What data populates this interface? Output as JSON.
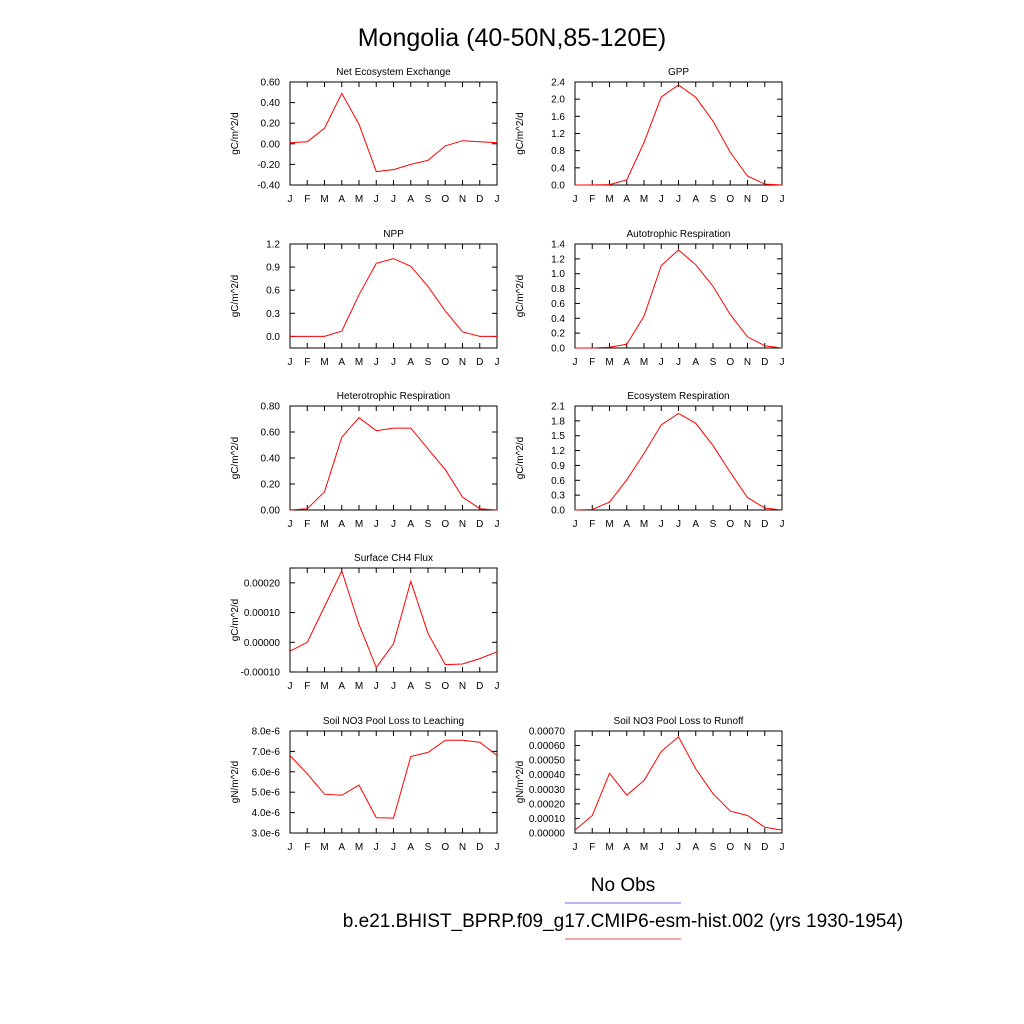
{
  "figure": {
    "title": "Mongolia (40-50N,85-120E)",
    "months": [
      "J",
      "F",
      "M",
      "A",
      "M",
      "J",
      "J",
      "A",
      "S",
      "O",
      "N",
      "D",
      "J"
    ]
  },
  "legend": {
    "items": [
      {
        "label": "No Obs",
        "color": "#8a8aee"
      },
      {
        "label": "b.e21.BHIST_BPRP.f09_g17.CMIP6-esm-hist.002 (yrs 1930-1954)",
        "color": "#f07070"
      }
    ]
  },
  "chart_data": [
    {
      "type": "line",
      "title": "Net Ecosystem Exchange",
      "ylabel": "gC/m^2/d",
      "ylim": [
        -0.4,
        0.6
      ],
      "yticks": [
        "0.60",
        "0.40",
        "0.20",
        "0.00",
        "-0.20",
        "-0.40"
      ],
      "ytick_values": [
        0.6,
        0.4,
        0.2,
        0.0,
        -0.2,
        -0.4
      ],
      "color": "#ff0000",
      "values": [
        0.01,
        0.02,
        0.15,
        0.49,
        0.19,
        -0.27,
        -0.25,
        -0.2,
        -0.16,
        -0.02,
        0.03,
        0.02,
        0.01
      ]
    },
    {
      "type": "line",
      "title": "GPP",
      "ylabel": "gC/m^2/d",
      "ylim": [
        0.0,
        2.4
      ],
      "yticks": [
        "2.4",
        "2.0",
        "1.6",
        "1.2",
        "0.8",
        "0.4",
        "0.0"
      ],
      "ytick_values": [
        2.4,
        2.0,
        1.6,
        1.2,
        0.8,
        0.4,
        0.0
      ],
      "color": "#ff0000",
      "values": [
        0.0,
        0.0,
        0.01,
        0.12,
        0.99,
        2.05,
        2.33,
        2.04,
        1.49,
        0.76,
        0.21,
        0.02,
        0.0
      ]
    },
    {
      "type": "line",
      "title": "NPP",
      "ylabel": "gC/m^2/d",
      "ylim": [
        -0.15,
        1.2
      ],
      "yticks": [
        "1.2",
        "0.9",
        "0.6",
        "0.3",
        "0.0"
      ],
      "ytick_values": [
        1.2,
        0.9,
        0.6,
        0.3,
        0.0
      ],
      "color": "#ff0000",
      "values": [
        0.0,
        0.0,
        0.0,
        0.07,
        0.54,
        0.95,
        1.01,
        0.91,
        0.65,
        0.33,
        0.06,
        0.0,
        0.0
      ]
    },
    {
      "type": "line",
      "title": "Autotrophic Respiration",
      "ylabel": "gC/m^2/d",
      "ylim": [
        0.0,
        1.4
      ],
      "yticks": [
        "1.4",
        "1.2",
        "1.0",
        "0.8",
        "0.6",
        "0.4",
        "0.2",
        "0.0"
      ],
      "ytick_values": [
        1.4,
        1.2,
        1.0,
        0.8,
        0.6,
        0.4,
        0.2,
        0.0
      ],
      "color": "#ff0000",
      "values": [
        0.0,
        0.0,
        0.01,
        0.05,
        0.43,
        1.11,
        1.32,
        1.12,
        0.83,
        0.45,
        0.15,
        0.03,
        0.0
      ]
    },
    {
      "type": "line",
      "title": "Heterotrophic Respiration",
      "ylabel": "gC/m^2/d",
      "ylim": [
        0.0,
        0.8
      ],
      "yticks": [
        "0.80",
        "0.60",
        "0.40",
        "0.20",
        "0.00"
      ],
      "ytick_values": [
        0.8,
        0.6,
        0.4,
        0.2,
        0.0
      ],
      "color": "#ff0000",
      "values": [
        0.0,
        0.01,
        0.14,
        0.56,
        0.71,
        0.61,
        0.63,
        0.63,
        0.47,
        0.31,
        0.1,
        0.01,
        0.0
      ]
    },
    {
      "type": "line",
      "title": "Ecosystem Respiration",
      "ylabel": "gC/m^2/d",
      "ylim": [
        0.0,
        2.1
      ],
      "yticks": [
        "2.1",
        "1.8",
        "1.5",
        "1.2",
        "0.9",
        "0.6",
        "0.3",
        "0.0"
      ],
      "ytick_values": [
        2.1,
        1.8,
        1.5,
        1.2,
        0.9,
        0.6,
        0.3,
        0.0
      ],
      "color": "#ff0000",
      "values": [
        0.0,
        0.01,
        0.16,
        0.61,
        1.14,
        1.72,
        1.95,
        1.75,
        1.3,
        0.76,
        0.25,
        0.04,
        0.0
      ]
    },
    {
      "type": "line",
      "title": "Surface CH4 Flux",
      "ylabel": "gC/m^2/d",
      "ylim": [
        -0.0001,
        0.00025
      ],
      "yticks": [
        "0.00020",
        "0.00010",
        "0.00000",
        "-0.00010"
      ],
      "ytick_values": [
        0.0002,
        0.0001,
        0.0,
        -0.0001
      ],
      "color": "#ff0000",
      "values": [
        -3e-05,
        0.0,
        0.00012,
        0.00024,
        6e-05,
        -8.5e-05,
        -5e-06,
        0.000205,
        3e-05,
        -7.5e-05,
        -7.3e-05,
        -5.5e-05,
        -3.2e-05
      ]
    },
    null,
    {
      "type": "line",
      "title": "Soil NO3 Pool Loss to Leaching",
      "ylabel": "gN/m^2/d",
      "ylim": [
        3e-06,
        8e-06
      ],
      "yticks": [
        "8.0e-6",
        "7.0e-6",
        "6.0e-6",
        "5.0e-6",
        "4.0e-6",
        "3.0e-6"
      ],
      "ytick_values": [
        8e-06,
        7e-06,
        6e-06,
        5e-06,
        4e-06,
        3e-06
      ],
      "color": "#ff0000",
      "values": [
        6.8e-06,
        5.9e-06,
        4.9e-06,
        4.85e-06,
        5.35e-06,
        3.75e-06,
        3.73e-06,
        6.75e-06,
        6.95e-06,
        7.55e-06,
        7.55e-06,
        7.45e-06,
        6.8e-06
      ]
    },
    {
      "type": "line",
      "title": "Soil NO3 Pool Loss to Runoff",
      "ylabel": "gN/m^2/d",
      "ylim": [
        0.0,
        0.0007
      ],
      "yticks": [
        "0.00070",
        "0.00060",
        "0.00050",
        "0.00040",
        "0.00030",
        "0.00020",
        "0.00010",
        "0.00000"
      ],
      "ytick_values": [
        0.0007,
        0.0006,
        0.0005,
        0.0004,
        0.0003,
        0.0002,
        0.0001,
        0.0
      ],
      "color": "#ff0000",
      "values": [
        2e-05,
        0.00012,
        0.00041,
        0.00026,
        0.00036,
        0.00056,
        0.00066,
        0.00044,
        0.00027,
        0.00015,
        0.00012,
        4e-05,
        2e-05
      ]
    }
  ]
}
